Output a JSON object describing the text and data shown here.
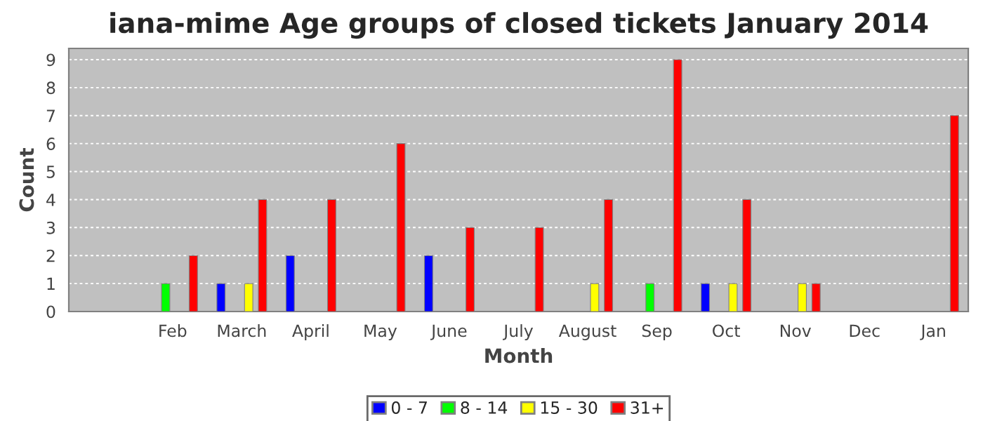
{
  "chart_data": {
    "type": "bar",
    "title": "iana-mime Age groups of closed tickets January 2014",
    "xlabel": "Month",
    "ylabel": "Count",
    "categories": [
      null,
      "Feb",
      "March",
      "April",
      "May",
      "June",
      "July",
      "August",
      "Sep",
      "Oct",
      "Nov",
      "Dec",
      "Jan"
    ],
    "series": [
      {
        "name": "0 - 7",
        "color": "#0000ff",
        "values": [
          0,
          0,
          1,
          2,
          0,
          2,
          0,
          0,
          0,
          1,
          0,
          0,
          0
        ]
      },
      {
        "name": "8 - 14",
        "color": "#00ff00",
        "values": [
          0,
          1,
          0,
          0,
          0,
          0,
          0,
          0,
          1,
          0,
          0,
          0,
          0
        ]
      },
      {
        "name": "15 - 30",
        "color": "#ffff00",
        "values": [
          0,
          0,
          1,
          0,
          0,
          0,
          0,
          1,
          0,
          1,
          1,
          0,
          0
        ]
      },
      {
        "name": "31+",
        "color": "#ff0000",
        "values": [
          0,
          2,
          4,
          4,
          6,
          3,
          3,
          4,
          9,
          4,
          1,
          0,
          7
        ]
      }
    ],
    "ylim": [
      0,
      9.4
    ],
    "yticks": [
      0,
      1,
      2,
      3,
      4,
      5,
      6,
      7,
      8,
      9
    ],
    "grid": "y",
    "legend": "bottom"
  }
}
